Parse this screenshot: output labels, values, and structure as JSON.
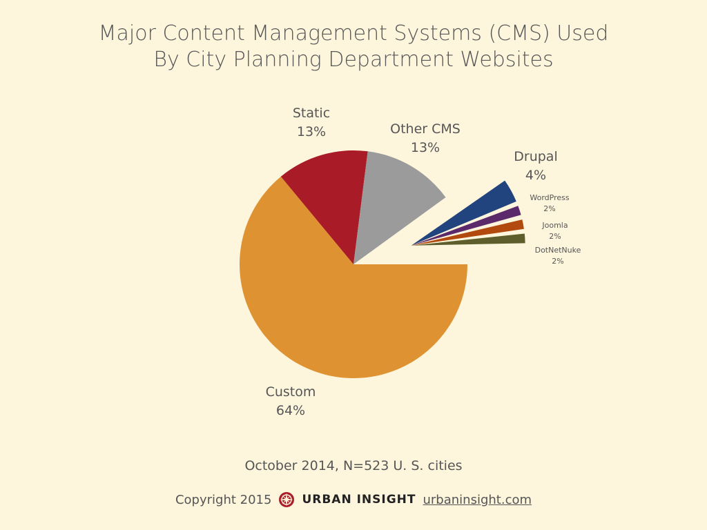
{
  "title": {
    "line1": "Major Content Management Systems (CMS) Used",
    "line2": "By City Planning Department Websites"
  },
  "note": "October 2014, N=523 U. S. cities",
  "footer": {
    "copyright": "Copyright 2015",
    "brand": "URBAN INSIGHT",
    "link": "urbaninsight.com",
    "logo_icon": "compass-rose-icon"
  },
  "chart_data": {
    "type": "pie",
    "title": "Major Content Management Systems (CMS) Used By City Planning Department Websites",
    "slices": [
      {
        "label": "Custom",
        "value": 64,
        "value_label": "64%",
        "color": "#df9231",
        "exploded": false
      },
      {
        "label": "Static",
        "value": 13,
        "value_label": "13%",
        "color": "#a91b26",
        "exploded": false
      },
      {
        "label": "Other CMS",
        "value": 13,
        "value_label": "13%",
        "color": "#9b9b9b",
        "exploded": false
      },
      {
        "label": "Drupal",
        "value": 4,
        "value_label": "4%",
        "color": "#22447e",
        "exploded": true
      },
      {
        "label": "WordPress",
        "value": 2,
        "value_label": "2%",
        "color": "#5b2a6b",
        "exploded": true
      },
      {
        "label": "Joomla",
        "value": 2,
        "value_label": "2%",
        "color": "#b24a0f",
        "exploded": true
      },
      {
        "label": "DotNetNuke",
        "value": 2,
        "value_label": "2%",
        "color": "#5d5e2c",
        "exploded": true
      }
    ]
  }
}
